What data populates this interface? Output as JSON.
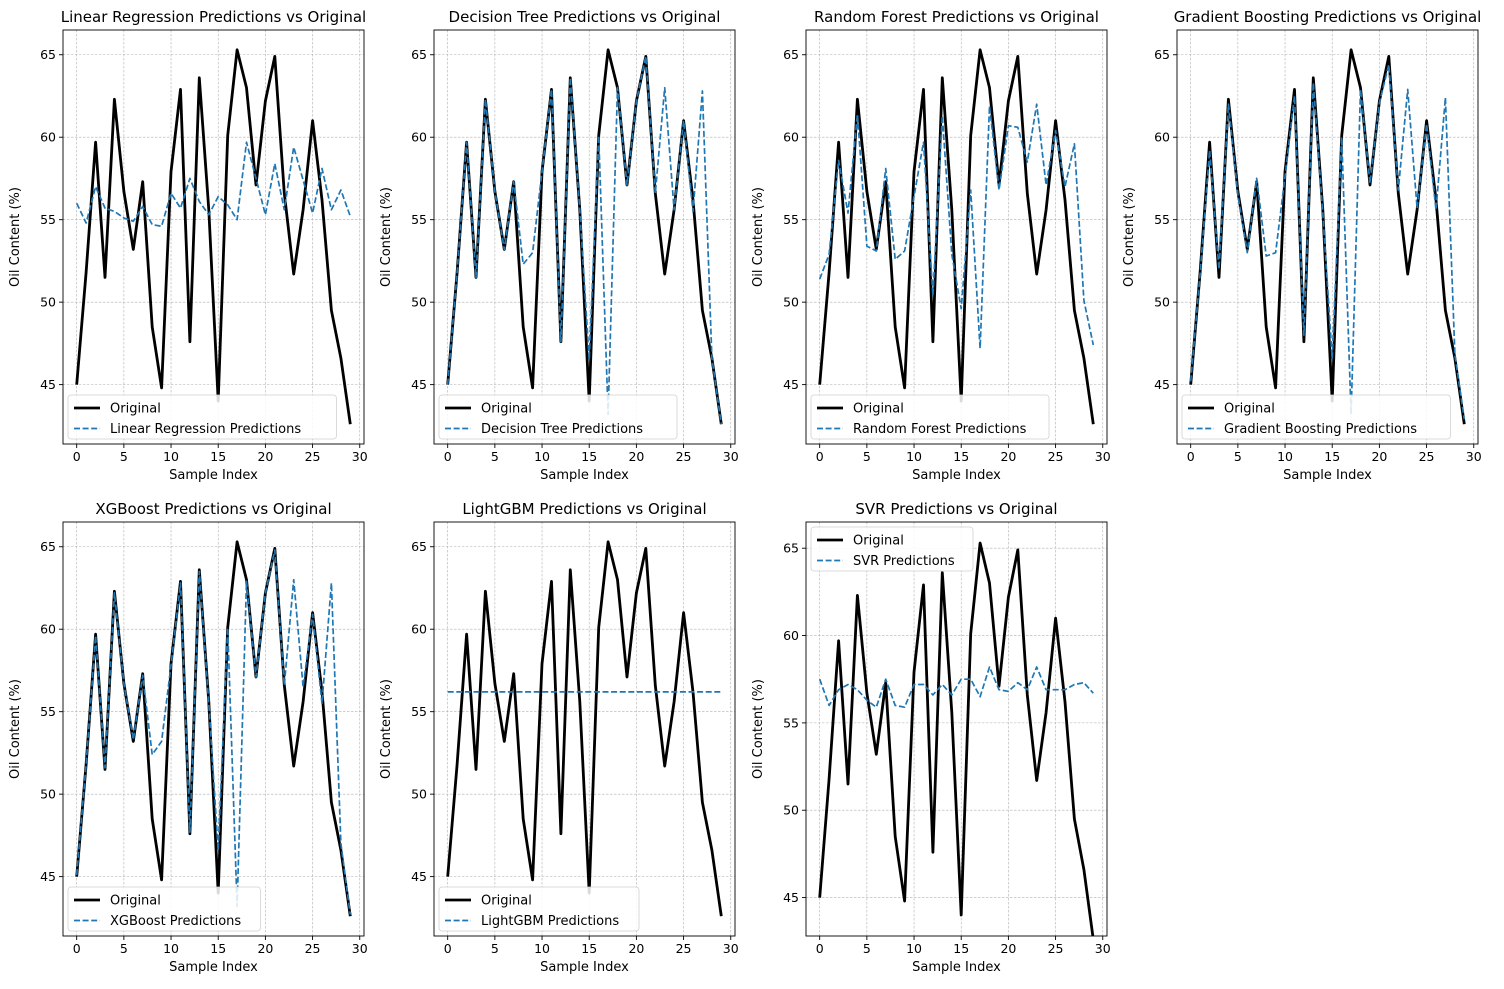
{
  "figure": {
    "background": "#ffffff"
  },
  "colors": {
    "original": "#000000",
    "prediction": "#1f77b4",
    "grid": "#b0b0b0"
  },
  "chart_data": [
    {
      "type": "line",
      "title": "Linear Regression Predictions vs Original",
      "xlabel": "Sample Index",
      "ylabel": "Oil Content (%)",
      "xlim": [
        -1.45,
        30.45
      ],
      "ylim": [
        41.4,
        66.5
      ],
      "xticks": [
        0,
        5,
        10,
        15,
        20,
        25,
        30
      ],
      "yticks": [
        45,
        50,
        55,
        60,
        65
      ],
      "grid": true,
      "legend_position": "lower-left",
      "x": [
        0,
        1,
        2,
        3,
        4,
        5,
        6,
        7,
        8,
        9,
        10,
        11,
        12,
        13,
        14,
        15,
        16,
        17,
        18,
        19,
        20,
        21,
        22,
        23,
        24,
        25,
        26,
        27,
        28,
        29
      ],
      "series": [
        {
          "name": "Original",
          "style": "solid",
          "values": [
            45.0,
            51.8,
            59.7,
            51.5,
            62.3,
            56.7,
            53.2,
            57.3,
            48.5,
            44.8,
            57.9,
            62.9,
            47.6,
            63.6,
            55.6,
            44.0,
            60.1,
            65.3,
            63.0,
            57.1,
            62.2,
            64.9,
            56.6,
            51.7,
            55.6,
            61.0,
            56.2,
            49.5,
            46.6,
            42.6
          ]
        },
        {
          "name": "Linear Regression Predictions",
          "style": "dashed",
          "values": [
            56.0,
            54.8,
            57.0,
            55.7,
            55.5,
            55.1,
            54.9,
            55.8,
            54.7,
            54.6,
            56.6,
            55.7,
            57.5,
            56.1,
            55.3,
            56.4,
            55.9,
            55.0,
            59.7,
            57.5,
            55.3,
            58.4,
            55.6,
            59.4,
            57.4,
            55.4,
            58.1,
            55.6,
            56.8,
            55.2
          ]
        }
      ]
    },
    {
      "type": "line",
      "title": "Decision Tree Predictions vs Original",
      "xlabel": "Sample Index",
      "ylabel": "Oil Content (%)",
      "xlim": [
        -1.45,
        30.45
      ],
      "ylim": [
        41.4,
        66.5
      ],
      "xticks": [
        0,
        5,
        10,
        15,
        20,
        25,
        30
      ],
      "yticks": [
        45,
        50,
        55,
        60,
        65
      ],
      "grid": true,
      "legend_position": "lower-left",
      "x": [
        0,
        1,
        2,
        3,
        4,
        5,
        6,
        7,
        8,
        9,
        10,
        11,
        12,
        13,
        14,
        15,
        16,
        17,
        18,
        19,
        20,
        21,
        22,
        23,
        24,
        25,
        26,
        27,
        28,
        29
      ],
      "series": [
        {
          "name": "Original",
          "style": "solid",
          "values": [
            45.0,
            51.8,
            59.7,
            51.5,
            62.3,
            56.7,
            53.2,
            57.3,
            48.5,
            44.8,
            57.9,
            62.9,
            47.6,
            63.6,
            55.6,
            44.0,
            60.1,
            65.3,
            63.0,
            57.1,
            62.2,
            64.9,
            56.6,
            51.7,
            55.6,
            61.0,
            56.2,
            49.5,
            46.6,
            42.6
          ]
        },
        {
          "name": "Decision Tree Predictions",
          "style": "dashed",
          "values": [
            45.0,
            51.8,
            59.7,
            51.5,
            62.3,
            56.7,
            53.2,
            57.3,
            52.3,
            53.0,
            57.9,
            62.9,
            47.6,
            63.6,
            55.6,
            46.5,
            60.1,
            43.2,
            63.0,
            57.1,
            62.2,
            64.9,
            56.6,
            63.0,
            55.6,
            61.0,
            55.5,
            62.8,
            46.6,
            42.6
          ]
        }
      ]
    },
    {
      "type": "line",
      "title": "Random Forest Predictions vs Original",
      "xlabel": "Sample Index",
      "ylabel": "Oil Content (%)",
      "xlim": [
        -1.45,
        30.45
      ],
      "ylim": [
        41.4,
        66.5
      ],
      "xticks": [
        0,
        5,
        10,
        15,
        20,
        25,
        30
      ],
      "yticks": [
        45,
        50,
        55,
        60,
        65
      ],
      "grid": true,
      "legend_position": "lower-left",
      "x": [
        0,
        1,
        2,
        3,
        4,
        5,
        6,
        7,
        8,
        9,
        10,
        11,
        12,
        13,
        14,
        15,
        16,
        17,
        18,
        19,
        20,
        21,
        22,
        23,
        24,
        25,
        26,
        27,
        28,
        29
      ],
      "series": [
        {
          "name": "Original",
          "style": "solid",
          "values": [
            45.0,
            51.8,
            59.7,
            51.5,
            62.3,
            56.7,
            53.2,
            57.3,
            48.5,
            44.8,
            57.9,
            62.9,
            47.6,
            63.6,
            55.6,
            44.0,
            60.1,
            65.3,
            63.0,
            57.1,
            62.2,
            64.9,
            56.6,
            51.7,
            55.6,
            61.0,
            56.2,
            49.5,
            46.6,
            42.6
          ]
        },
        {
          "name": "Random Forest Predictions",
          "style": "dashed",
          "values": [
            51.4,
            52.9,
            58.6,
            55.4,
            61.4,
            53.4,
            53.1,
            58.1,
            52.6,
            53.1,
            56.4,
            59.7,
            50.4,
            61.3,
            52.9,
            49.6,
            56.8,
            47.2,
            61.9,
            56.8,
            60.7,
            60.6,
            58.5,
            62.0,
            57.1,
            60.4,
            57.0,
            59.6,
            50.1,
            47.4
          ]
        }
      ]
    },
    {
      "type": "line",
      "title": "Gradient Boosting Predictions vs Original",
      "xlabel": "Sample Index",
      "ylabel": "Oil Content (%)",
      "xlim": [
        -1.45,
        30.45
      ],
      "ylim": [
        41.4,
        66.5
      ],
      "xticks": [
        0,
        5,
        10,
        15,
        20,
        25,
        30
      ],
      "yticks": [
        45,
        50,
        55,
        60,
        65
      ],
      "grid": true,
      "legend_position": "lower-left",
      "x": [
        0,
        1,
        2,
        3,
        4,
        5,
        6,
        7,
        8,
        9,
        10,
        11,
        12,
        13,
        14,
        15,
        16,
        17,
        18,
        19,
        20,
        21,
        22,
        23,
        24,
        25,
        26,
        27,
        28,
        29
      ],
      "series": [
        {
          "name": "Original",
          "style": "solid",
          "values": [
            45.0,
            51.8,
            59.7,
            51.5,
            62.3,
            56.7,
            53.2,
            57.3,
            48.5,
            44.8,
            57.9,
            62.9,
            47.6,
            63.6,
            55.6,
            44.0,
            60.1,
            65.3,
            63.0,
            57.1,
            62.2,
            64.9,
            56.6,
            51.7,
            55.6,
            61.0,
            56.2,
            49.5,
            46.6,
            42.6
          ]
        },
        {
          "name": "Gradient Boosting Predictions",
          "style": "dashed",
          "values": [
            45.2,
            51.7,
            59.2,
            52.0,
            62.0,
            56.5,
            53.0,
            57.5,
            52.8,
            53.0,
            57.6,
            62.5,
            48.0,
            63.3,
            55.4,
            46.6,
            60.0,
            43.2,
            62.9,
            57.2,
            62.1,
            64.4,
            56.8,
            62.9,
            55.7,
            60.8,
            55.6,
            62.4,
            46.8,
            42.9
          ]
        }
      ]
    },
    {
      "type": "line",
      "title": "XGBoost Predictions vs Original",
      "xlabel": "Sample Index",
      "ylabel": "Oil Content (%)",
      "xlim": [
        -1.45,
        30.45
      ],
      "ylim": [
        41.4,
        66.5
      ],
      "xticks": [
        0,
        5,
        10,
        15,
        20,
        25,
        30
      ],
      "yticks": [
        45,
        50,
        55,
        60,
        65
      ],
      "grid": true,
      "legend_position": "lower-left",
      "x": [
        0,
        1,
        2,
        3,
        4,
        5,
        6,
        7,
        8,
        9,
        10,
        11,
        12,
        13,
        14,
        15,
        16,
        17,
        18,
        19,
        20,
        21,
        22,
        23,
        24,
        25,
        26,
        27,
        28,
        29
      ],
      "series": [
        {
          "name": "Original",
          "style": "solid",
          "values": [
            45.0,
            51.8,
            59.7,
            51.5,
            62.3,
            56.7,
            53.2,
            57.3,
            48.5,
            44.8,
            57.9,
            62.9,
            47.6,
            63.6,
            55.6,
            44.0,
            60.1,
            65.3,
            63.0,
            57.1,
            62.2,
            64.9,
            56.6,
            51.7,
            55.6,
            61.0,
            56.2,
            49.5,
            46.6,
            42.6
          ]
        },
        {
          "name": "XGBoost Predictions",
          "style": "dashed",
          "values": [
            45.1,
            51.8,
            59.6,
            51.6,
            62.2,
            56.7,
            53.3,
            57.2,
            52.4,
            53.2,
            57.8,
            62.8,
            47.7,
            63.5,
            55.5,
            46.6,
            60.1,
            43.2,
            62.9,
            57.1,
            62.2,
            64.8,
            56.6,
            63.0,
            56.5,
            60.9,
            55.5,
            62.8,
            47.0,
            42.7
          ]
        }
      ]
    },
    {
      "type": "line",
      "title": "LightGBM Predictions vs Original",
      "xlabel": "Sample Index",
      "ylabel": "Oil Content (%)",
      "xlim": [
        -1.45,
        30.45
      ],
      "ylim": [
        41.4,
        66.5
      ],
      "xticks": [
        0,
        5,
        10,
        15,
        20,
        25,
        30
      ],
      "yticks": [
        45,
        50,
        55,
        60,
        65
      ],
      "grid": true,
      "legend_position": "lower-left",
      "x": [
        0,
        1,
        2,
        3,
        4,
        5,
        6,
        7,
        8,
        9,
        10,
        11,
        12,
        13,
        14,
        15,
        16,
        17,
        18,
        19,
        20,
        21,
        22,
        23,
        24,
        25,
        26,
        27,
        28,
        29
      ],
      "series": [
        {
          "name": "Original",
          "style": "solid",
          "values": [
            45.0,
            51.8,
            59.7,
            51.5,
            62.3,
            56.7,
            53.2,
            57.3,
            48.5,
            44.8,
            57.9,
            62.9,
            47.6,
            63.6,
            55.6,
            44.0,
            60.1,
            65.3,
            63.0,
            57.1,
            62.2,
            64.9,
            56.6,
            51.7,
            55.6,
            61.0,
            56.2,
            49.5,
            46.6,
            42.6
          ]
        },
        {
          "name": "LightGBM Predictions",
          "style": "dashed",
          "values": [
            56.2,
            56.2,
            56.2,
            56.2,
            56.2,
            56.2,
            56.2,
            56.2,
            56.2,
            56.2,
            56.2,
            56.2,
            56.2,
            56.2,
            56.2,
            56.2,
            56.2,
            56.2,
            56.2,
            56.2,
            56.2,
            56.2,
            56.2,
            56.2,
            56.2,
            56.2,
            56.2,
            56.2,
            56.2,
            56.2
          ]
        }
      ]
    },
    {
      "type": "line",
      "title": "SVR Predictions vs Original",
      "xlabel": "Sample Index",
      "ylabel": "Oil Content (%)",
      "xlim": [
        -1.45,
        30.45
      ],
      "ylim": [
        42.8,
        66.5
      ],
      "xticks": [
        0,
        5,
        10,
        15,
        20,
        25,
        30
      ],
      "yticks": [
        45,
        50,
        55,
        60,
        65
      ],
      "grid": true,
      "legend_position": "upper-left",
      "x": [
        0,
        1,
        2,
        3,
        4,
        5,
        6,
        7,
        8,
        9,
        10,
        11,
        12,
        13,
        14,
        15,
        16,
        17,
        18,
        19,
        20,
        21,
        22,
        23,
        24,
        25,
        26,
        27,
        28,
        29
      ],
      "series": [
        {
          "name": "Original",
          "style": "solid",
          "values": [
            45.0,
            51.8,
            59.7,
            51.5,
            62.3,
            56.7,
            53.2,
            57.3,
            48.5,
            44.8,
            57.9,
            62.9,
            47.6,
            63.6,
            55.6,
            44.0,
            60.1,
            65.3,
            63.0,
            57.1,
            62.2,
            64.9,
            56.6,
            51.7,
            55.6,
            61.0,
            56.2,
            49.5,
            46.6,
            42.6
          ]
        },
        {
          "name": "SVR Predictions",
          "style": "dashed",
          "values": [
            57.5,
            56.0,
            56.9,
            57.2,
            56.9,
            56.3,
            55.9,
            57.5,
            56.0,
            55.9,
            57.2,
            57.2,
            56.6,
            57.2,
            56.6,
            57.5,
            57.5,
            56.5,
            58.2,
            56.9,
            56.8,
            57.3,
            56.9,
            58.2,
            56.9,
            56.9,
            56.9,
            57.2,
            57.3,
            56.7
          ]
        }
      ]
    }
  ]
}
